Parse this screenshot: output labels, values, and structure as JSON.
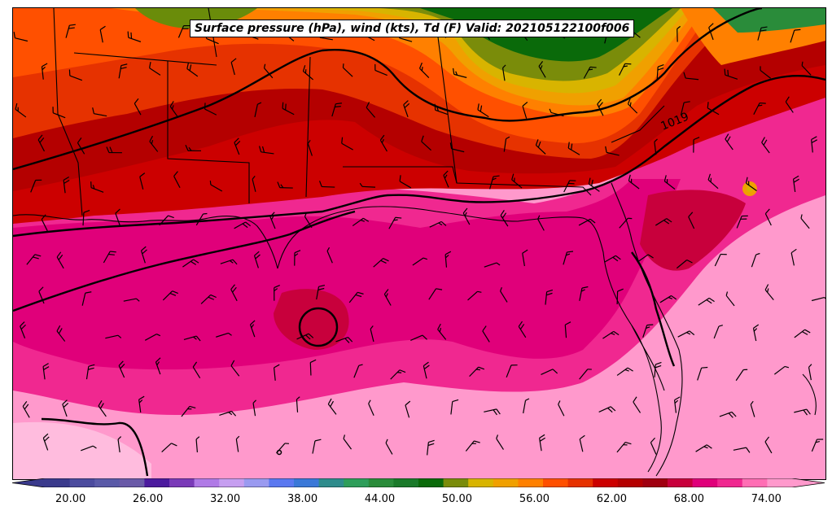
{
  "title": "Surface pressure (hPa), wind (kts), Td (F) Valid: 202105122100f006",
  "isobar_labels": [
    "1019"
  ],
  "colorbar": {
    "min": 18,
    "max": 76,
    "ticks": [
      "20.00",
      "26.00",
      "32.00",
      "38.00",
      "44.00",
      "50.00",
      "56.00",
      "62.00",
      "68.00",
      "74.00"
    ],
    "colors": [
      "#3a3a8c",
      "#4b4b9e",
      "#5a5aa8",
      "#6a5aa8",
      "#4b1a9e",
      "#7a3ab8",
      "#b07ae6",
      "#c69ef0",
      "#9a9af0",
      "#5a78f0",
      "#3a78d8",
      "#2e8c8c",
      "#2e9e5a",
      "#2a8c3a",
      "#1a7a2a",
      "#0a6a0a",
      "#7a8c0a",
      "#d8b400",
      "#f0a000",
      "#ff8000",
      "#ff5000",
      "#e63200",
      "#cc0000",
      "#b40000",
      "#a00010",
      "#c8003c",
      "#e0007a",
      "#f02890",
      "#ff6eb4",
      "#ff99cc"
    ]
  },
  "barb_glyph": "wind-barb-icon"
}
